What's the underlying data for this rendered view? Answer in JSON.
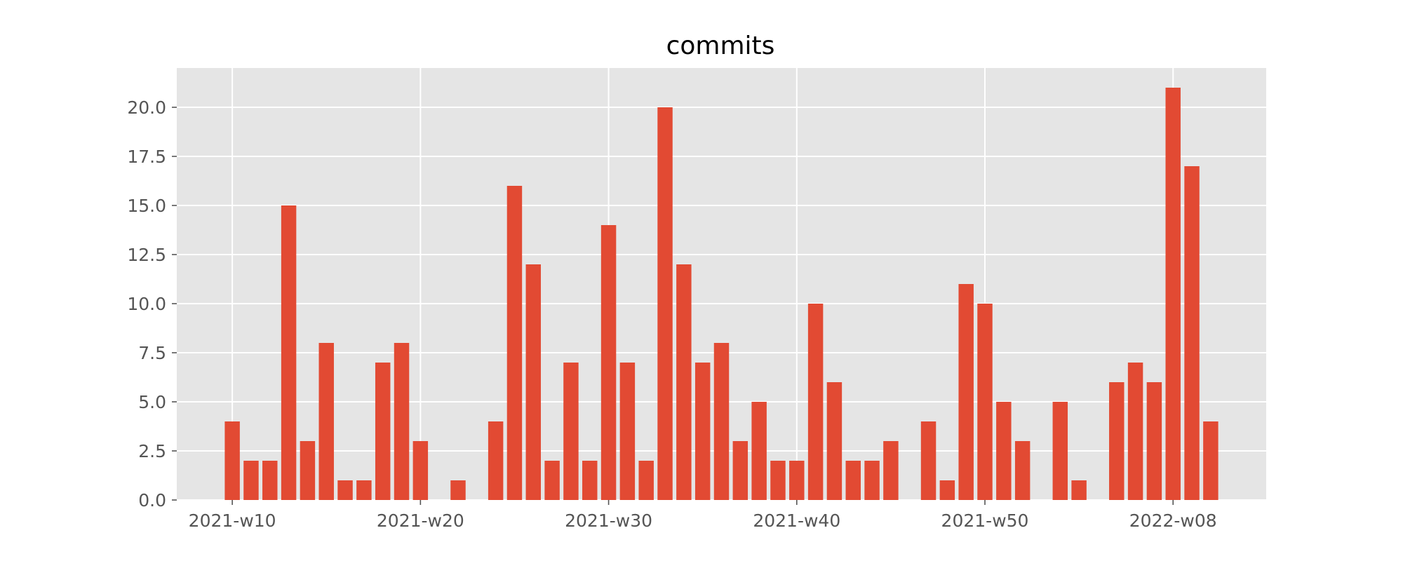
{
  "chart_data": {
    "type": "bar",
    "title": "commits",
    "xlabel": "",
    "ylabel": "",
    "ylim": [
      0,
      22
    ],
    "xlim": [
      6.05,
      63.95
    ],
    "grid": true,
    "legend": "none",
    "colors": {
      "bar": "#e24a33",
      "plot_background": "#e5e5e5",
      "grid": "#ffffff",
      "tick_label": "#555555",
      "title": "#000000"
    },
    "x_ticks": [
      {
        "pos": 9,
        "label": "2021-w10"
      },
      {
        "pos": 19,
        "label": "2021-w20"
      },
      {
        "pos": 29,
        "label": "2021-w30"
      },
      {
        "pos": 39,
        "label": "2021-w40"
      },
      {
        "pos": 49,
        "label": "2021-w50"
      },
      {
        "pos": 59,
        "label": "2022-w08"
      }
    ],
    "y_ticks": [
      {
        "value": 0,
        "label": "0.0"
      },
      {
        "value": 2.5,
        "label": "2.5"
      },
      {
        "value": 5,
        "label": "5.0"
      },
      {
        "value": 7.5,
        "label": "7.5"
      },
      {
        "value": 10,
        "label": "10.0"
      },
      {
        "value": 12.5,
        "label": "12.5"
      },
      {
        "value": 15,
        "label": "15.0"
      },
      {
        "value": 17.5,
        "label": "17.5"
      },
      {
        "value": 20,
        "label": "20.0"
      }
    ],
    "x": [
      9,
      10,
      11,
      12,
      13,
      14,
      15,
      16,
      17,
      18,
      19,
      20,
      21,
      22,
      23,
      24,
      25,
      26,
      27,
      28,
      29,
      30,
      31,
      32,
      33,
      34,
      35,
      36,
      37,
      38,
      39,
      40,
      41,
      42,
      43,
      44,
      45,
      46,
      47,
      48,
      49,
      50,
      51,
      52,
      53,
      54,
      55,
      56,
      57,
      58,
      59,
      60,
      61
    ],
    "values": [
      4,
      2,
      2,
      15,
      3,
      8,
      1,
      1,
      7,
      8,
      3,
      0,
      1,
      0,
      4,
      16,
      12,
      2,
      7,
      2,
      14,
      7,
      2,
      20,
      12,
      7,
      8,
      3,
      5,
      2,
      2,
      10,
      6,
      2,
      2,
      3,
      0,
      4,
      1,
      11,
      10,
      5,
      3,
      0,
      5,
      1,
      0,
      6,
      7,
      6,
      21,
      17,
      4
    ]
  }
}
